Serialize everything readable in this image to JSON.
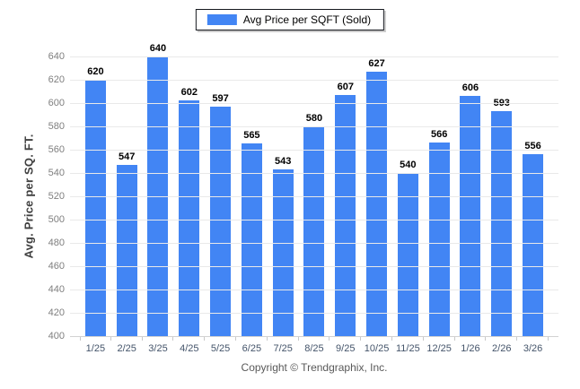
{
  "chart_data": {
    "type": "bar",
    "title": "",
    "categories": [
      "1/25",
      "2/25",
      "3/25",
      "4/25",
      "5/25",
      "6/25",
      "7/25",
      "8/25",
      "9/25",
      "10/25",
      "11/25",
      "12/25",
      "1/26",
      "2/26",
      "3/26"
    ],
    "values": [
      620,
      547,
      640,
      602,
      597,
      565,
      543,
      580,
      607,
      627,
      540,
      566,
      606,
      593,
      556
    ],
    "xlabel": "",
    "ylabel": "Avg. Price per SQ. FT.",
    "ylim": [
      400,
      640
    ],
    "ytick_step": 20,
    "grid": true,
    "legend": [
      "Avg Price per SQFT (Sold)"
    ],
    "legend_position": "top",
    "bar_color": "#4285f4"
  },
  "legend": {
    "label": "Avg Price per SQFT (Sold)"
  },
  "axes": {
    "y_title": "Avg. Price per SQ. FT."
  },
  "footer": {
    "copyright": "Copyright © Trendgraphix, Inc."
  },
  "colors": {
    "bar": "#4285f4",
    "value_label": "#000000",
    "y_tick": "#7f7f7f",
    "x_tick": "#44546a",
    "gridline": "#e9e9e9",
    "footer_text": "#595959"
  }
}
